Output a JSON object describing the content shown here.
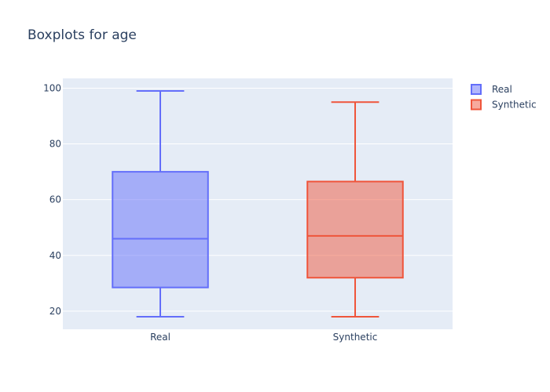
{
  "chart_data": {
    "type": "box",
    "title": "Boxplots for age",
    "xlabel": "",
    "ylabel": "",
    "categories": [
      "Real",
      "Synthetic"
    ],
    "series": [
      {
        "name": "Real",
        "color": "#636efa",
        "min": 18,
        "q1": 28.5,
        "median": 46,
        "q3": 70,
        "max": 99
      },
      {
        "name": "Synthetic",
        "color": "#ef553b",
        "min": 18,
        "q1": 32,
        "median": 47,
        "q3": 66.5,
        "max": 95
      }
    ],
    "ylim": [
      13.5,
      103.5
    ],
    "yticks": [
      20,
      40,
      60,
      80,
      100
    ],
    "grid": true,
    "legend_position": "top-right",
    "plot_background": "#e5ecf6"
  }
}
